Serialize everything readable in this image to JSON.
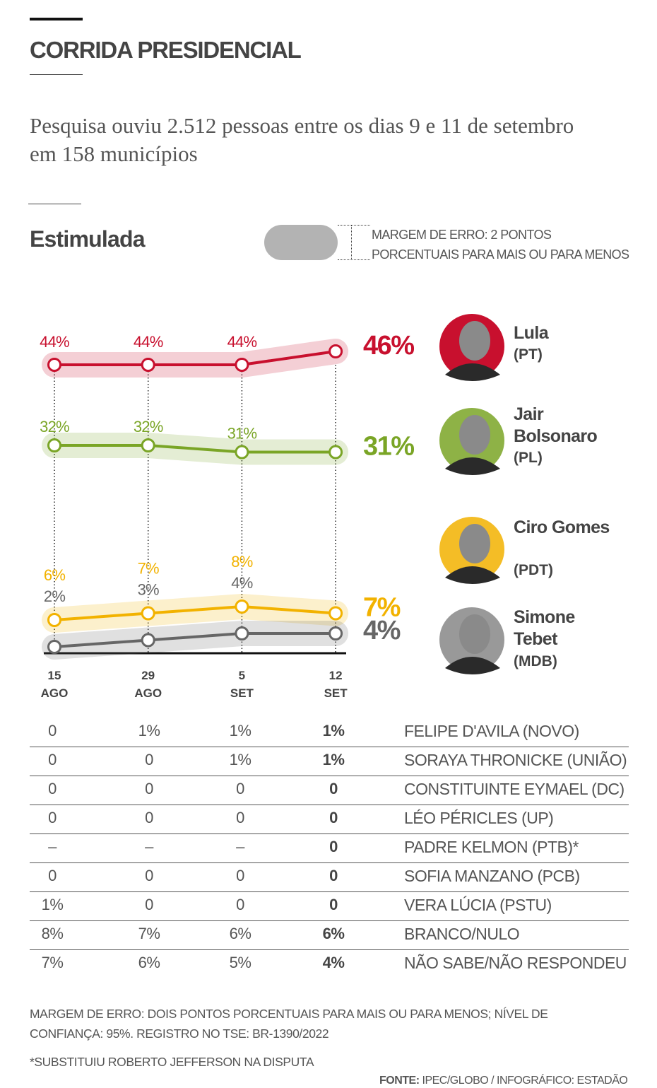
{
  "header": {
    "title": "CORRIDA PRESIDENCIAL",
    "subtitle": "Pesquisa ouviu 2.512 pessoas entre os dias 9 e 11 de setembro em 158 municípios",
    "section": "Estimulada",
    "margin_legend": "MARGEM DE ERRO: 2 PONTOS PORCENTUAIS PARA MAIS OU PARA MENOS"
  },
  "chart_data": {
    "type": "line",
    "categories": [
      "15 AGO",
      "29 AGO",
      "5 SET",
      "12 SET"
    ],
    "ylim": [
      0,
      50
    ],
    "series": [
      {
        "name": "Lula",
        "party": "(PT)",
        "color": "#c8102e",
        "values": [
          44,
          44,
          44,
          46
        ],
        "value_labels": [
          "44%",
          "44%",
          "44%",
          "46%"
        ]
      },
      {
        "name": "Jair Bolsonaro",
        "party": "(PL)",
        "color": "#7aa526",
        "values": [
          32,
          32,
          31,
          31
        ],
        "value_labels": [
          "32%",
          "32%",
          "31%",
          "31%"
        ]
      },
      {
        "name": "Ciro Gomes",
        "party": "(PDT)",
        "color": "#f2b200",
        "values": [
          6,
          7,
          8,
          7
        ],
        "value_labels": [
          "6%",
          "7%",
          "8%",
          "7%"
        ]
      },
      {
        "name": "Simone Tebet",
        "party": "(MDB)",
        "color": "#666666",
        "values": [
          2,
          3,
          4,
          4
        ],
        "value_labels": [
          "2%",
          "3%",
          "4%",
          "4%"
        ]
      }
    ]
  },
  "table": {
    "rows": [
      [
        "0",
        "1%",
        "1%",
        "1%",
        "FELIPE D'AVILA (NOVO)"
      ],
      [
        "0",
        "0",
        "1%",
        "1%",
        "SORAYA THRONICKE (UNIÃO)"
      ],
      [
        "0",
        "0",
        "0",
        "0",
        "CONSTITUINTE EYMAEL (DC)"
      ],
      [
        "0",
        "0",
        "0",
        "0",
        "LÉO PÉRICLES (UP)"
      ],
      [
        "–",
        "–",
        "–",
        "0",
        "PADRE KELMON (PTB)*"
      ],
      [
        "0",
        "0",
        "0",
        "0",
        "SOFIA MANZANO (PCB)"
      ],
      [
        "1%",
        "0",
        "0",
        "0",
        "VERA LÚCIA (PSTU)"
      ],
      [
        "8%",
        "7%",
        "6%",
        "6%",
        "BRANCO/NULO"
      ],
      [
        "7%",
        "6%",
        "5%",
        "4%",
        "NÃO SABE/NÃO RESPONDEU"
      ]
    ]
  },
  "notes": [
    "MARGEM DE ERRO: DOIS PONTOS PORCENTUAIS PARA MAIS OU PARA MENOS; NÍVEL DE CONFIANÇA: 95%. REGISTRO NO TSE: BR-1390/2022",
    "*SUBSTITUIU ROBERTO JEFFERSON NA DISPUTA"
  ],
  "source": {
    "label": "FONTE:",
    "text": "IPEC/GLOBO / INFOGRÁFICO: ESTADÃO"
  }
}
